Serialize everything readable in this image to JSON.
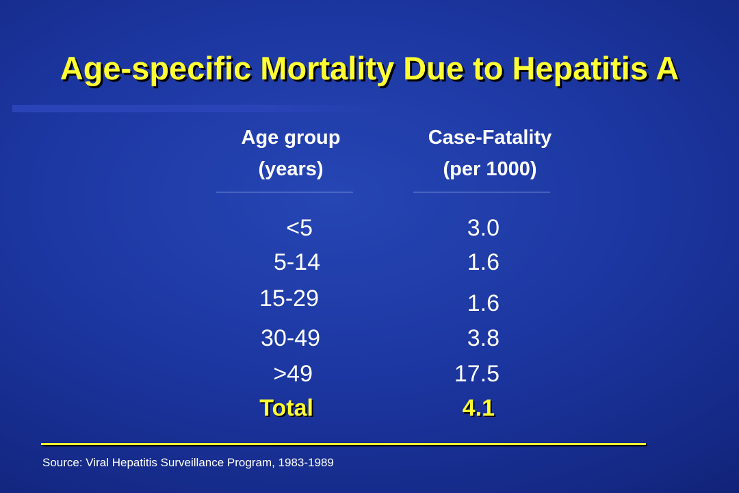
{
  "slide": {
    "title": "Age-specific Mortality Due to Hepatitis A",
    "columns": {
      "age_group": {
        "line1": "Age group",
        "line2": "(years)"
      },
      "case_fatality": {
        "line1": "Case-Fatality",
        "line2": "(per 1000)"
      }
    },
    "rows": [
      {
        "age": "<5",
        "rate": "3.0"
      },
      {
        "age": "5-14",
        "rate": "1.6"
      },
      {
        "age": "15-29",
        "rate": "1.6"
      },
      {
        "age": "30-49",
        "rate": "3.8"
      },
      {
        "age": ">49",
        "rate": "17.5"
      }
    ],
    "total": {
      "label": "Total",
      "rate": "4.1"
    },
    "source": "Source: Viral Hepatitis Surveillance Program, 1983-1989"
  },
  "colors": {
    "background": "#1c36a0",
    "title": "#ffff33",
    "text": "#ffffff",
    "total": "#ffff33"
  }
}
